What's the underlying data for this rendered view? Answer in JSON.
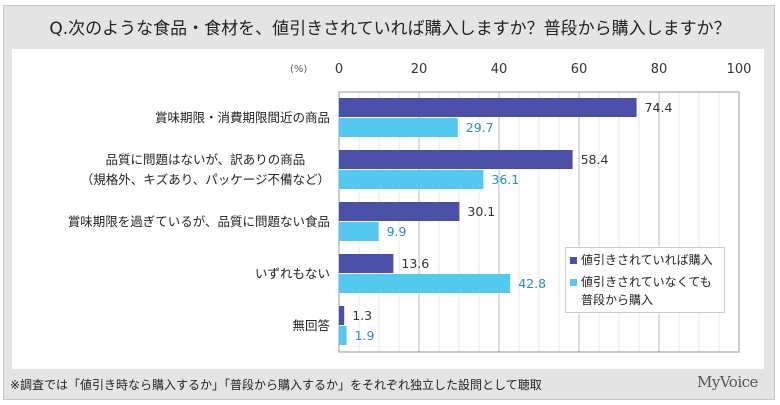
{
  "title": "Q.次のような食品・食材を、値引きされていれば購入しますか？普段から購入しますか？",
  "footer": "※調査では「値引き時なら購入するか」「普段から購入するか」をそれぞれ独立した設問として聴取",
  "logo": "MyVoice",
  "chart_data": {
    "type": "bar",
    "orientation": "horizontal",
    "unit_label": "(%)",
    "xlim": [
      0,
      100
    ],
    "ticks": [
      "0",
      "20",
      "40",
      "60",
      "80",
      "100"
    ],
    "grid": true,
    "legend_position": "bottom-right",
    "categories": [
      [
        "賞味期限・消費期限間近の商品"
      ],
      [
        "品質に問題はないが、訳ありの商品",
        "（規格外、キズあり、パッケージ不備など）"
      ],
      [
        "賞味期限を過ぎているが、品質に問題ない食品"
      ],
      [
        "いずれもない"
      ],
      [
        "無回答"
      ]
    ],
    "series": [
      {
        "name": "値引きされていれば購入",
        "color": "#4a4fa8",
        "values": [
          74.4,
          58.4,
          30.1,
          13.6,
          1.3
        ]
      },
      {
        "name": "値引きされていなくても 普段から購入",
        "name_lines": [
          "値引きされていなくても",
          "普段から購入"
        ],
        "color": "#55c8f0",
        "values": [
          29.7,
          36.1,
          9.9,
          42.8,
          1.9
        ]
      }
    ]
  }
}
